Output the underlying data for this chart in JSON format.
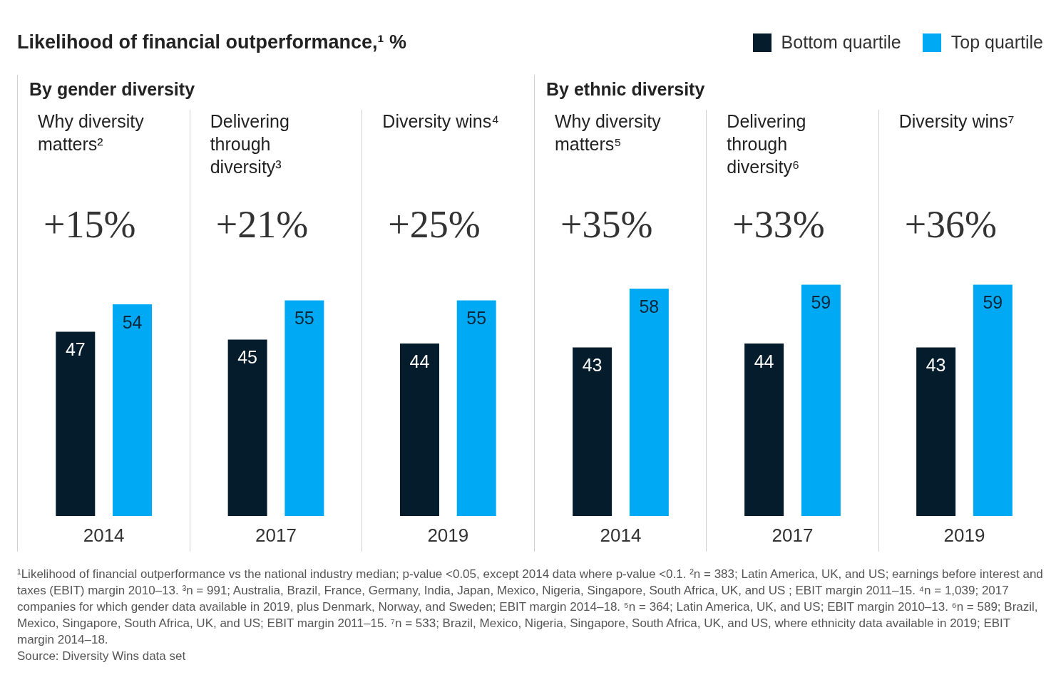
{
  "chart_data": [
    {
      "type": "bar",
      "title": "By gender diversity",
      "categories": [
        "2014",
        "2017",
        "2019"
      ],
      "series": [
        {
          "name": "Bottom quartile",
          "color": "#051c2c",
          "values": [
            47,
            45,
            44
          ]
        },
        {
          "name": "Top quartile",
          "color": "#00a9f4",
          "values": [
            54,
            55,
            55
          ]
        }
      ],
      "data_labels": true,
      "legend": "top right",
      "annotations": [
        "Likelihood of financial outperformance,¹ %",
        "Why diversity matters²",
        "+15%",
        "Delivering through diversity³",
        "+21%",
        "Diversity wins⁴",
        "+25%"
      ]
    },
    {
      "type": "bar",
      "title": "By ethnic diversity",
      "categories": [
        "2014",
        "2017",
        "2019"
      ],
      "series": [
        {
          "color": "#051c2c",
          "values": [
            43,
            44,
            43
          ]
        },
        {
          "color": "#00a9f4",
          "values": [
            58,
            59,
            59
          ]
        }
      ],
      "data_labels": true,
      "annotations": [
        "Why diversity matters⁵",
        "+35%",
        "Delivering through diversity⁶",
        "+33%",
        "Diversity wins⁷",
        "+36%",
        "¹Likelihood of financial outperformance vs the national industry median; p-value <0.05, except 2014 data where p-value <0.1. ²n = 383; Latin America, UK, and US; earnings before interest and taxes (EBIT) margin 2010–13. ³n = 991; Australia, Brazil, France, Germany, India, Japan, Mexico, Nigeria, Singapore, South Africa, UK, and US ; EBIT margin 2011–15. ⁴n = 1,039; 2017 companies for which gender data available in 2019, plus Denmark, Norway, and Sweden;  EBIT margin 2014–18. ⁵n = 364; Latin America, UK, and US; EBIT margin 2010–13. ⁶n = 589; Brazil, Mexico, Singapore, South Africa, UK, and US; EBIT margin 2011–15. ⁷n = 533; Brazil, Mexico, Nigeria, Singapore, South Africa, UK, and US, where ethnicity data available in 2019; EBIT margin 2014–18.",
        "Source: Diversity Wins data set"
      ]
    }
  ]
}
